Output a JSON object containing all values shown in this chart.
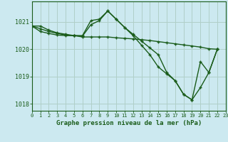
{
  "title": "Graphe pression niveau de la mer (hPa)",
  "background_color": "#cce9f0",
  "grid_color": "#b0cfc8",
  "line_color": "#1a5c1a",
  "xlim": [
    0,
    23
  ],
  "ylim": [
    1017.75,
    1021.75
  ],
  "yticks": [
    1018,
    1019,
    1020,
    1021
  ],
  "xticks": [
    0,
    1,
    2,
    3,
    4,
    5,
    6,
    7,
    8,
    9,
    10,
    11,
    12,
    13,
    14,
    15,
    16,
    17,
    18,
    19,
    20,
    21,
    22,
    23
  ],
  "series": [
    {
      "x": [
        0,
        1,
        2,
        3,
        4,
        5,
        6,
        7,
        8,
        9,
        10,
        11,
        12,
        13,
        14,
        15,
        16,
        17,
        18,
        19,
        20,
        21,
        22
      ],
      "y": [
        1020.85,
        1020.85,
        1020.7,
        1020.6,
        1020.55,
        1020.5,
        1020.5,
        1021.05,
        1021.1,
        1021.4,
        1021.1,
        1020.8,
        1020.55,
        1020.3,
        1020.05,
        1019.8,
        1019.15,
        1018.85,
        1018.35,
        1018.15,
        1019.55,
        1019.15,
        1020.0
      ]
    },
    {
      "x": [
        0,
        1,
        2,
        3,
        4,
        5,
        6,
        7,
        8,
        9,
        10,
        11,
        12,
        13,
        14,
        15,
        16,
        17,
        18,
        19,
        20,
        21,
        22
      ],
      "y": [
        1020.85,
        1020.75,
        1020.65,
        1020.58,
        1020.52,
        1020.5,
        1020.45,
        1020.45,
        1020.45,
        1020.45,
        1020.42,
        1020.4,
        1020.38,
        1020.35,
        1020.32,
        1020.28,
        1020.24,
        1020.2,
        1020.16,
        1020.12,
        1020.08,
        1020.02,
        1020.0
      ]
    },
    {
      "x": [
        0,
        1,
        2,
        3,
        4,
        5,
        6,
        7,
        8,
        9,
        10,
        11,
        12,
        13,
        14,
        15,
        16,
        17,
        18,
        19,
        20,
        21,
        22
      ],
      "y": [
        1020.85,
        1020.65,
        1020.58,
        1020.52,
        1020.5,
        1020.5,
        1020.48,
        1020.9,
        1021.05,
        1021.4,
        1021.1,
        1020.8,
        1020.5,
        1020.15,
        1019.8,
        1019.35,
        1019.1,
        1018.85,
        1018.35,
        1018.15,
        1018.6,
        1019.15,
        1020.0
      ]
    }
  ]
}
